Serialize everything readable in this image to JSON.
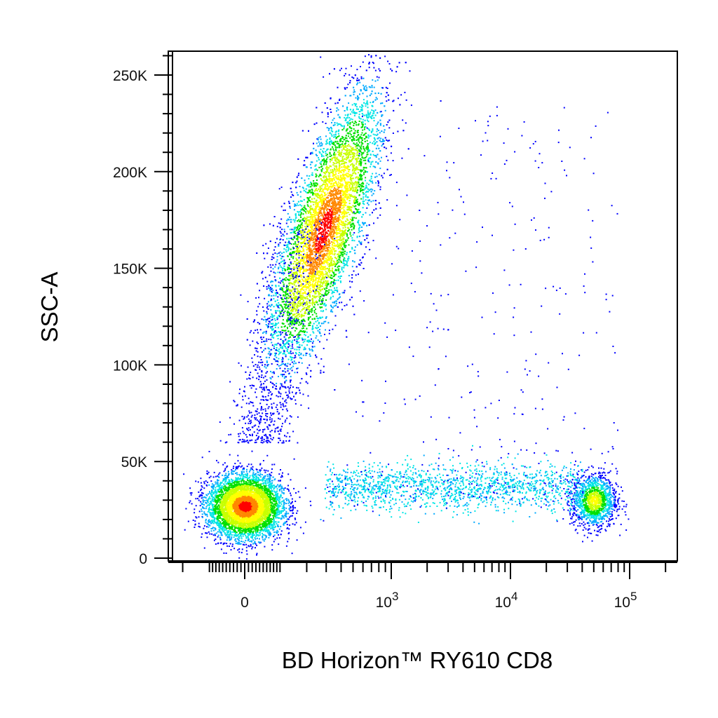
{
  "chart_data": {
    "type": "scatter",
    "subtype": "flow-cytometry-density-dot-plot",
    "xlabel": "BD Horizon™ RY610 CD8",
    "ylabel": "SSC-A",
    "x_scale": "biexponential",
    "x_ticks": [
      {
        "label": "0",
        "value": 0
      },
      {
        "label": "10",
        "exp": "3",
        "value": 1000
      },
      {
        "label": "10",
        "exp": "4",
        "value": 10000
      },
      {
        "label": "10",
        "exp": "5",
        "value": 100000
      }
    ],
    "y_ticks": [
      {
        "label": "0",
        "value": 0
      },
      {
        "label": "50K",
        "value": 50000
      },
      {
        "label": "100K",
        "value": 100000
      },
      {
        "label": "150K",
        "value": 150000
      },
      {
        "label": "200K",
        "value": 200000
      },
      {
        "label": "250K",
        "value": 250000
      }
    ],
    "xlim": [
      -300,
      250000
    ],
    "ylim": [
      -3000,
      262000
    ],
    "grid": false,
    "legend": "none",
    "density_colors": [
      "#0000ff",
      "#00aaff",
      "#00e5e5",
      "#00e000",
      "#c8ff00",
      "#ffff00",
      "#ff8800",
      "#ff0000"
    ],
    "populations": [
      {
        "name_hint": "CD8-negative low-SSC cluster",
        "x_center": 0,
        "y_center": 27000,
        "x_spread": 80,
        "y_spread": 8000,
        "relative_count": 0.34,
        "peak_density": "red"
      },
      {
        "name_hint": "high-SSC cluster",
        "x_center": 200,
        "y_center": 170000,
        "x_spread": 150,
        "y_spread": 35000,
        "relative_count": 0.48,
        "peak_density": "red"
      },
      {
        "name_hint": "CD8-positive cluster",
        "x_center": 50000,
        "y_center": 30000,
        "x_spread": 10000,
        "y_spread": 7000,
        "relative_count": 0.08,
        "peak_density": "yellow"
      },
      {
        "name_hint": "low-SSC continuum",
        "x_min": 300,
        "x_max": 40000,
        "y_center": 37000,
        "y_spread": 6000,
        "relative_count": 0.1,
        "peak_density": "cyan"
      }
    ]
  }
}
